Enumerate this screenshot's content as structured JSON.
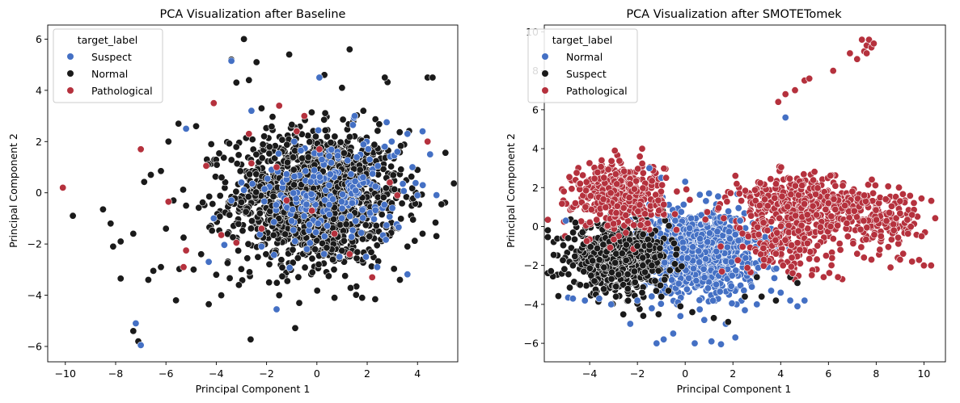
{
  "palette": {
    "blue": "#4470c4",
    "black": "#1a1a1a",
    "red": "#b5313d"
  },
  "chart_data": [
    {
      "type": "scatter",
      "title": "PCA Visualization after Baseline",
      "xlabel": "Principal Component 1",
      "ylabel": "Principal Component 2",
      "xlim": [
        -10.7,
        5.6
      ],
      "ylim": [
        -6.6,
        6.55
      ],
      "xticks": [
        -10,
        -8,
        -6,
        -4,
        -2,
        0,
        2,
        4
      ],
      "yticks": [
        -6,
        -4,
        -2,
        0,
        2,
        4,
        6
      ],
      "tick_labels_x": [
        "−10",
        "−8",
        "−6",
        "−4",
        "−2",
        "0",
        "2",
        "4"
      ],
      "tick_labels_y": [
        "−6",
        "−4",
        "−2",
        "0",
        "2",
        "4",
        "6"
      ],
      "grid": false,
      "legend": {
        "title": "target_label",
        "placement": "top-left",
        "entries": [
          {
            "name": "Suspect",
            "color": "#4470c4"
          },
          {
            "name": "Normal",
            "color": "#1a1a1a"
          },
          {
            "name": "Pathological",
            "color": "#b5313d"
          }
        ]
      },
      "series": [
        {
          "name": "Normal",
          "color": "#1a1a1a",
          "points": [
            [
              -9.7,
              -0.9
            ],
            [
              -8.5,
              -0.65
            ],
            [
              -8.2,
              -1.2
            ],
            [
              -8.1,
              -2.1
            ],
            [
              -7.8,
              -3.35
            ],
            [
              -7.8,
              -1.9
            ],
            [
              -7.3,
              -1.6
            ],
            [
              -7.3,
              -5.4
            ],
            [
              -7.1,
              -5.8
            ],
            [
              -6.5,
              -3.05
            ],
            [
              -6.2,
              -2.9
            ],
            [
              -6.7,
              -3.4
            ],
            [
              -6.0,
              -1.4
            ],
            [
              -5.9,
              2.0
            ],
            [
              -5.6,
              -4.2
            ],
            [
              -5.3,
              -1.75
            ],
            [
              -5.2,
              -0.5
            ],
            [
              -4.9,
              -3.0
            ],
            [
              -4.6,
              -2.4
            ],
            [
              -4.3,
              -4.35
            ],
            [
              -4.8,
              2.6
            ],
            [
              -4.2,
              1.9
            ],
            [
              -4.0,
              -3.2
            ],
            [
              -3.8,
              -4.0
            ],
            [
              -3.4,
              5.2
            ],
            [
              -3.2,
              4.3
            ],
            [
              -3.1,
              -3.6
            ],
            [
              -2.9,
              6.0
            ],
            [
              -2.7,
              4.4
            ],
            [
              -2.4,
              5.1
            ],
            [
              -2.2,
              3.3
            ],
            [
              -1.9,
              -3.5
            ],
            [
              -1.5,
              -4.0
            ],
            [
              -1.1,
              5.4
            ],
            [
              -0.7,
              -4.3
            ],
            [
              0.3,
              4.6
            ],
            [
              0.7,
              -4.1
            ],
            [
              1.0,
              4.1
            ],
            [
              1.3,
              5.6
            ],
            [
              1.8,
              -4.1
            ],
            [
              2.7,
              4.5
            ],
            [
              3.3,
              -3.4
            ],
            [
              4.4,
              4.5
            ],
            [
              4.6,
              4.5
            ],
            [
              3.6,
              -2.1
            ],
            [
              4.2,
              -1.6
            ],
            [
              -6.6,
              0.7
            ],
            [
              -6.2,
              0.85
            ],
            [
              -5.7,
              -0.3
            ],
            [
              -5.5,
              2.7
            ]
          ],
          "dense_cloud": {
            "center": [
              0.0,
              -0.2
            ],
            "spread": [
              2.0,
              1.55
            ],
            "count": 1450
          }
        },
        {
          "name": "Suspect",
          "color": "#4470c4",
          "points": [
            [
              -7.2,
              -5.1
            ],
            [
              -7.0,
              -5.95
            ],
            [
              -4.3,
              -2.7
            ],
            [
              -5.2,
              2.5
            ],
            [
              -4.1,
              -1.0
            ],
            [
              -3.4,
              -0.3
            ],
            [
              -2.6,
              3.2
            ],
            [
              -3.4,
              5.15
            ],
            [
              -1.6,
              -4.55
            ],
            [
              -1.0,
              -1.1
            ],
            [
              0.2,
              1.3
            ],
            [
              1.4,
              -0.4
            ],
            [
              2.1,
              1.3
            ],
            [
              2.7,
              1.8
            ],
            [
              3.2,
              1.6
            ],
            [
              3.8,
              1.0
            ],
            [
              4.5,
              1.5
            ],
            [
              -0.4,
              -2.2
            ],
            [
              0.9,
              -2.5
            ],
            [
              2.4,
              -2.9
            ],
            [
              3.0,
              -0.6
            ],
            [
              -1.8,
              0.9
            ],
            [
              -2.2,
              -2.1
            ],
            [
              1.5,
              3.0
            ],
            [
              0.1,
              4.5
            ],
            [
              4.2,
              2.4
            ],
            [
              3.6,
              2.3
            ],
            [
              -0.9,
              2.0
            ],
            [
              4.0,
              -0.1
            ],
            [
              -3.0,
              0.4
            ]
          ],
          "dense_cloud": {
            "center": [
              0.6,
              0.0
            ],
            "spread": [
              1.7,
              1.3
            ],
            "count": 180
          }
        },
        {
          "name": "Pathological",
          "color": "#b5313d",
          "points": [
            [
              -10.1,
              0.2
            ],
            [
              -7.0,
              1.7
            ],
            [
              -5.9,
              -0.35
            ],
            [
              -5.3,
              -2.9
            ],
            [
              -5.2,
              -2.25
            ],
            [
              -4.4,
              1.05
            ],
            [
              -4.1,
              3.5
            ],
            [
              -3.8,
              -1.65
            ],
            [
              -3.2,
              -1.95
            ],
            [
              -2.6,
              1.15
            ],
            [
              -1.6,
              1.0
            ],
            [
              -1.5,
              3.4
            ],
            [
              -1.2,
              -0.3
            ],
            [
              -0.8,
              2.4
            ],
            [
              -0.5,
              3.0
            ],
            [
              0.7,
              -1.6
            ],
            [
              1.3,
              -2.4
            ],
            [
              2.2,
              -3.3
            ],
            [
              4.4,
              2.0
            ],
            [
              0.1,
              1.7
            ],
            [
              2.9,
              0.4
            ],
            [
              3.2,
              -0.1
            ],
            [
              -2.7,
              2.3
            ],
            [
              -2.2,
              -1.4
            ],
            [
              -0.2,
              -0.7
            ]
          ]
        }
      ]
    },
    {
      "type": "scatter",
      "title": "PCA Visualization after SMOTETomek",
      "xlabel": "Principal Component 1",
      "ylabel": "Principal Component 2",
      "xlim": [
        -5.9,
        10.9
      ],
      "ylim": [
        -6.95,
        10.35
      ],
      "xticks": [
        -4,
        -2,
        0,
        2,
        4,
        6,
        8,
        10
      ],
      "yticks": [
        -6,
        -4,
        -2,
        0,
        2,
        4,
        6,
        8,
        10
      ],
      "tick_labels_x": [
        "−4",
        "−2",
        "0",
        "2",
        "4",
        "6",
        "8",
        "10"
      ],
      "tick_labels_y": [
        "−6",
        "−4",
        "−2",
        "0",
        "2",
        "4",
        "6",
        "8",
        "10"
      ],
      "grid": false,
      "legend": {
        "title": "target_label",
        "placement": "top-left",
        "entries": [
          {
            "name": "Normal",
            "color": "#4470c4"
          },
          {
            "name": "Suspect",
            "color": "#1a1a1a"
          },
          {
            "name": "Pathological",
            "color": "#b5313d"
          }
        ]
      },
      "series": [
        {
          "name": "Normal",
          "color": "#4470c4",
          "points": [
            [
              -5.0,
              0.3
            ],
            [
              -4.9,
              -3.65
            ],
            [
              -4.7,
              -3.7
            ],
            [
              -4.2,
              -3.8
            ],
            [
              -3.6,
              -3.7
            ],
            [
              -3.1,
              -4.0
            ],
            [
              -2.3,
              -5.0
            ],
            [
              -2.0,
              -3.8
            ],
            [
              -1.4,
              -4.2
            ],
            [
              -1.2,
              -6.0
            ],
            [
              -0.9,
              -5.8
            ],
            [
              -0.5,
              -5.5
            ],
            [
              -0.2,
              -4.6
            ],
            [
              0.4,
              -6.0
            ],
            [
              0.8,
              -4.8
            ],
            [
              1.1,
              -5.9
            ],
            [
              1.5,
              -6.05
            ],
            [
              1.7,
              -5.0
            ],
            [
              2.1,
              -5.7
            ],
            [
              2.5,
              -4.3
            ],
            [
              3.0,
              -4.0
            ],
            [
              3.6,
              -3.3
            ],
            [
              4.0,
              -3.4
            ],
            [
              4.4,
              -3.8
            ],
            [
              4.7,
              -4.1
            ],
            [
              5.0,
              -3.8
            ],
            [
              4.2,
              5.6
            ],
            [
              0.0,
              2.3
            ],
            [
              1.0,
              1.7
            ],
            [
              2.3,
              0.3
            ],
            [
              -1.5,
              3.0
            ],
            [
              -1.0,
              2.5
            ]
          ],
          "dense_cloud": {
            "center": [
              0.5,
              -1.3
            ],
            "spread": [
              1.5,
              1.2
            ],
            "count": 1050
          }
        },
        {
          "name": "Suspect",
          "color": "#1a1a1a",
          "points": [
            [
              -4.7,
              -2.0
            ],
            [
              -4.4,
              -3.0
            ],
            [
              -3.8,
              -2.8
            ],
            [
              -3.4,
              -2.1
            ],
            [
              -2.9,
              -3.6
            ],
            [
              -2.4,
              -3.2
            ],
            [
              -1.8,
              -3.4
            ],
            [
              -1.0,
              -3.6
            ],
            [
              -0.7,
              -3.3
            ],
            [
              -0.2,
              -4.1
            ],
            [
              0.3,
              -4.4
            ],
            [
              1.2,
              -4.7
            ],
            [
              1.8,
              -4.9
            ],
            [
              2.5,
              -3.6
            ],
            [
              3.2,
              -3.6
            ],
            [
              3.8,
              -3.8
            ],
            [
              4.4,
              -2.6
            ],
            [
              4.7,
              -2.9
            ],
            [
              3.0,
              -2.6
            ],
            [
              -4.9,
              -0.6
            ],
            [
              -4.6,
              0.2
            ],
            [
              -4.3,
              -0.3
            ],
            [
              -1.4,
              -2.0
            ],
            [
              -2.0,
              -1.0
            ]
          ],
          "dense_cloud": {
            "center": [
              -2.8,
              -1.6
            ],
            "spread": [
              1.2,
              1.0
            ],
            "count": 650
          }
        },
        {
          "name": "Pathological",
          "color": "#b5313d",
          "points": [
            [
              3.9,
              6.4
            ],
            [
              4.2,
              6.8
            ],
            [
              4.6,
              7.0
            ],
            [
              5.0,
              7.5
            ],
            [
              5.2,
              7.6
            ],
            [
              6.2,
              8.0
            ],
            [
              6.9,
              8.9
            ],
            [
              7.2,
              8.6
            ],
            [
              7.5,
              9.0
            ],
            [
              7.6,
              9.3
            ],
            [
              7.7,
              9.6
            ],
            [
              7.4,
              9.6
            ],
            [
              7.8,
              9.2
            ],
            [
              7.6,
              8.9
            ],
            [
              7.9,
              9.4
            ],
            [
              10.0,
              -2.0
            ],
            [
              10.3,
              -2.0
            ],
            [
              9.5,
              -1.8
            ],
            [
              9.0,
              -1.7
            ],
            [
              8.6,
              -2.1
            ],
            [
              7.8,
              -1.7
            ],
            [
              7.2,
              -1.4
            ],
            [
              6.5,
              -1.2
            ],
            [
              5.9,
              -1.5
            ],
            [
              5.3,
              -2.5
            ],
            [
              5.8,
              -2.6
            ],
            [
              6.4,
              -2.6
            ],
            [
              3.3,
              -1.7
            ],
            [
              3.8,
              -1.4
            ],
            [
              4.1,
              -2.0
            ],
            [
              4.5,
              -2.4
            ],
            [
              4.8,
              -1.2
            ],
            [
              5.5,
              0.6
            ],
            [
              6.0,
              1.2
            ],
            [
              7.0,
              1.8
            ],
            [
              6.6,
              2.1
            ],
            [
              7.5,
              1.6
            ],
            [
              8.4,
              1.4
            ],
            [
              9.0,
              1.3
            ],
            [
              9.5,
              0.6
            ],
            [
              9.9,
              -0.5
            ],
            [
              8.2,
              -0.5
            ],
            [
              -1.8,
              4.0
            ],
            [
              -1.9,
              3.6
            ],
            [
              -3.5,
              3.4
            ],
            [
              -0.8,
              2.5
            ],
            [
              -4.4,
              2.2
            ],
            [
              -4.6,
              1.2
            ]
          ],
          "clouds": [
            {
              "center": [
                -2.8,
                1.6
              ],
              "spread": [
                1.1,
                1.0
              ],
              "count": 420
            },
            {
              "center": [
                4.9,
                1.2
              ],
              "spread": [
                1.8,
                0.8
              ],
              "count": 380
            },
            {
              "center": [
                4.2,
                -0.8
              ],
              "spread": [
                1.2,
                0.9
              ],
              "count": 160
            },
            {
              "center": [
                8.3,
                0.3
              ],
              "spread": [
                1.1,
                0.8
              ],
              "count": 140
            }
          ]
        }
      ]
    }
  ]
}
